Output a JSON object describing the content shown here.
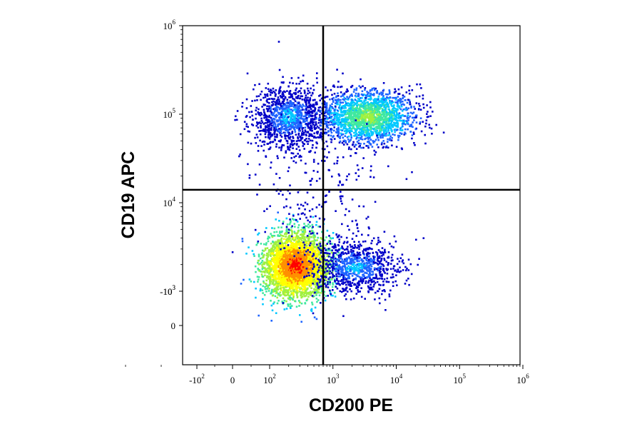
{
  "chart_data": {
    "type": "scatter",
    "subtype": "flow-cytometry density dot plot with quadrant gate",
    "title": "",
    "xlabel": "CD200 PE",
    "ylabel": "CD19 APC",
    "xscale": "biexponential (log above 10^2, linear near 0)",
    "yscale": "biexponential (log above 10^3, linear near 0)",
    "xlim": [
      -300,
      1000000
    ],
    "ylim": [
      -1000,
      1000000
    ],
    "x_ticks": [
      {
        "base": "-10",
        "exp": "2",
        "value": -100
      },
      {
        "base": "0",
        "exp": "",
        "value": 0
      },
      {
        "base": "10",
        "exp": "2",
        "value": 100
      },
      {
        "base": "10",
        "exp": "3",
        "value": 1000
      },
      {
        "base": "10",
        "exp": "4",
        "value": 10000
      },
      {
        "base": "10",
        "exp": "5",
        "value": 100000
      },
      {
        "base": "10",
        "exp": "6",
        "value": 1000000
      }
    ],
    "y_ticks": [
      {
        "base": "10",
        "exp": "6",
        "value": 1000000
      },
      {
        "base": "10",
        "exp": "5",
        "value": 100000
      },
      {
        "base": "10",
        "exp": "4",
        "value": 10000
      },
      {
        "base": "10",
        "exp": "3",
        "value": 1000
      },
      {
        "base": "0",
        "exp": "",
        "value": 0
      },
      {
        "base": "-10",
        "exp": "3",
        "value": -1000
      }
    ],
    "quadrant_gate": {
      "x": 700,
      "y": 14000
    },
    "populations": [
      {
        "name": "CD19-negative, CD200-low",
        "x_center": 250,
        "y_center": 2000,
        "spread": "dense",
        "peak_color": "#ff0000"
      },
      {
        "name": "CD19-negative, CD200-positive",
        "x_center": 2000,
        "y_center": 1900,
        "spread": "sparse",
        "peak_color": "#1a4fff"
      },
      {
        "name": "CD19-positive, CD200-low",
        "x_center": 200,
        "y_center": 95000,
        "spread": "moderate",
        "peak_color": "#2060ff"
      },
      {
        "name": "CD19-positive, CD200-positive",
        "x_center": 3500,
        "y_center": 95000,
        "spread": "moderate",
        "peak_color": "#30e0c0"
      }
    ],
    "grid": false,
    "legend": "none",
    "colormap": [
      "#0000c8",
      "#1e64ff",
      "#00c8ff",
      "#40e8a0",
      "#a0f040",
      "#ffff00",
      "#ff9000",
      "#ff0000"
    ]
  }
}
